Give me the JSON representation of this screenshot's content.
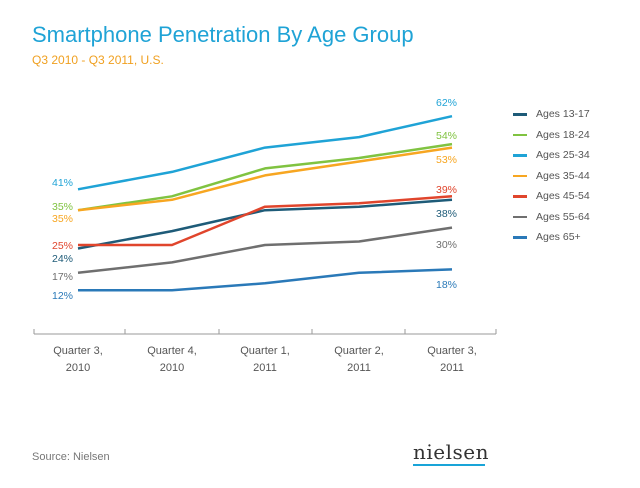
{
  "header": {
    "title": "Smartphone Penetration By Age Group",
    "subtitle": "Q3 2010 - Q3 2011, U.S."
  },
  "footer": {
    "source": "Source: Nielsen",
    "logo_text": "nielsen"
  },
  "chart_data": {
    "type": "line",
    "title": "Smartphone Penetration By Age Group",
    "subtitle": "Q3 2010 - Q3 2011, U.S.",
    "categories": [
      "Quarter 3,\n2010",
      "Quarter 4,\n2010",
      "Quarter 1,\n2011",
      "Quarter 2,\n2011",
      "Quarter 3,\n2011"
    ],
    "ylim": [
      0,
      70
    ],
    "grid": false,
    "legend_position": "right",
    "series": [
      {
        "name": "Ages 13-17",
        "color": "#1e5b78",
        "values": [
          24,
          29,
          35,
          36,
          38
        ],
        "start_label": "24%",
        "end_label": "38%"
      },
      {
        "name": "Ages 18-24",
        "color": "#80c341",
        "values": [
          35,
          39,
          47,
          50,
          54
        ],
        "start_label": "35%",
        "end_label": "54%"
      },
      {
        "name": "Ages 25-34",
        "color": "#1fa3d6",
        "values": [
          41,
          46,
          53,
          56,
          62
        ],
        "start_label": "41%",
        "end_label": "62%"
      },
      {
        "name": "Ages 35-44",
        "color": "#f7a621",
        "values": [
          35,
          38,
          45,
          49,
          53
        ],
        "start_label": "35%",
        "end_label": "53%"
      },
      {
        "name": "Ages 45-54",
        "color": "#e0452c",
        "values": [
          25,
          25,
          36,
          37,
          39
        ],
        "start_label": "25%",
        "end_label": "39%"
      },
      {
        "name": "Ages 55-64",
        "color": "#6f6f6f",
        "values": [
          17,
          20,
          25,
          26,
          30
        ],
        "start_label": "17%",
        "end_label": "30%"
      },
      {
        "name": "Ages 65+",
        "color": "#2a79b8",
        "values": [
          12,
          12,
          14,
          17,
          18
        ],
        "start_label": "12%",
        "end_label": "18%"
      }
    ]
  }
}
